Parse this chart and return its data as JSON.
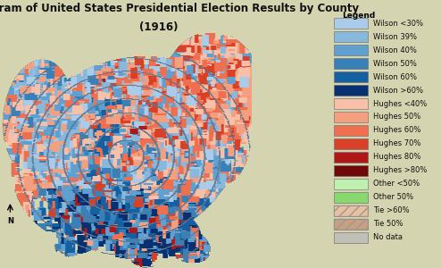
{
  "title_line1": "Cartogram of United States Presidential Election Results by County",
  "title_line2": "(1916)",
  "bg_color": "#d4d4b0",
  "map_bg": "#ffffff",
  "legend_title": "Legend",
  "legend_items": [
    {
      "label": "Wilson <30%",
      "color": "#aacce8",
      "pattern": null
    },
    {
      "label": "Wilson 39%",
      "color": "#88b8dc",
      "pattern": null
    },
    {
      "label": "Wilson 40%",
      "color": "#60a0d0",
      "pattern": null
    },
    {
      "label": "Wilson 50%",
      "color": "#3880b8",
      "pattern": null
    },
    {
      "label": "Wilson 60%",
      "color": "#1560a0",
      "pattern": null
    },
    {
      "label": "Wilson >60%",
      "color": "#083070",
      "pattern": null
    },
    {
      "label": "Hughes <40%",
      "color": "#f8c0a8",
      "pattern": null
    },
    {
      "label": "Hughes 50%",
      "color": "#f4a080",
      "pattern": null
    },
    {
      "label": "Hughes 60%",
      "color": "#ee7050",
      "pattern": null
    },
    {
      "label": "Hughes 70%",
      "color": "#d84028",
      "pattern": null
    },
    {
      "label": "Hughes 80%",
      "color": "#b01818",
      "pattern": null
    },
    {
      "label": "Hughes >80%",
      "color": "#700808",
      "pattern": null
    },
    {
      "label": "Other <50%",
      "color": "#c0f0b0",
      "pattern": null
    },
    {
      "label": "Other 50%",
      "color": "#88d870",
      "pattern": null
    },
    {
      "label": "Tie >60%",
      "color": "#e8c0a0",
      "pattern": "///"
    },
    {
      "label": "Tie 50%",
      "color": "#c8a080",
      "pattern": "///"
    },
    {
      "label": "No data",
      "color": "#c0c0b8",
      "pattern": null
    }
  ],
  "wilson_colors": [
    "#aacce8",
    "#88b8dc",
    "#60a0d0",
    "#3880b8",
    "#1560a0",
    "#083070"
  ],
  "hughes_colors": [
    "#f8c0a8",
    "#f4a080",
    "#ee7050",
    "#d84028",
    "#b01818",
    "#700808"
  ],
  "title_fontsize": 8.5,
  "legend_fontsize": 6.0,
  "figsize": [
    4.94,
    3.0
  ],
  "dpi": 100
}
